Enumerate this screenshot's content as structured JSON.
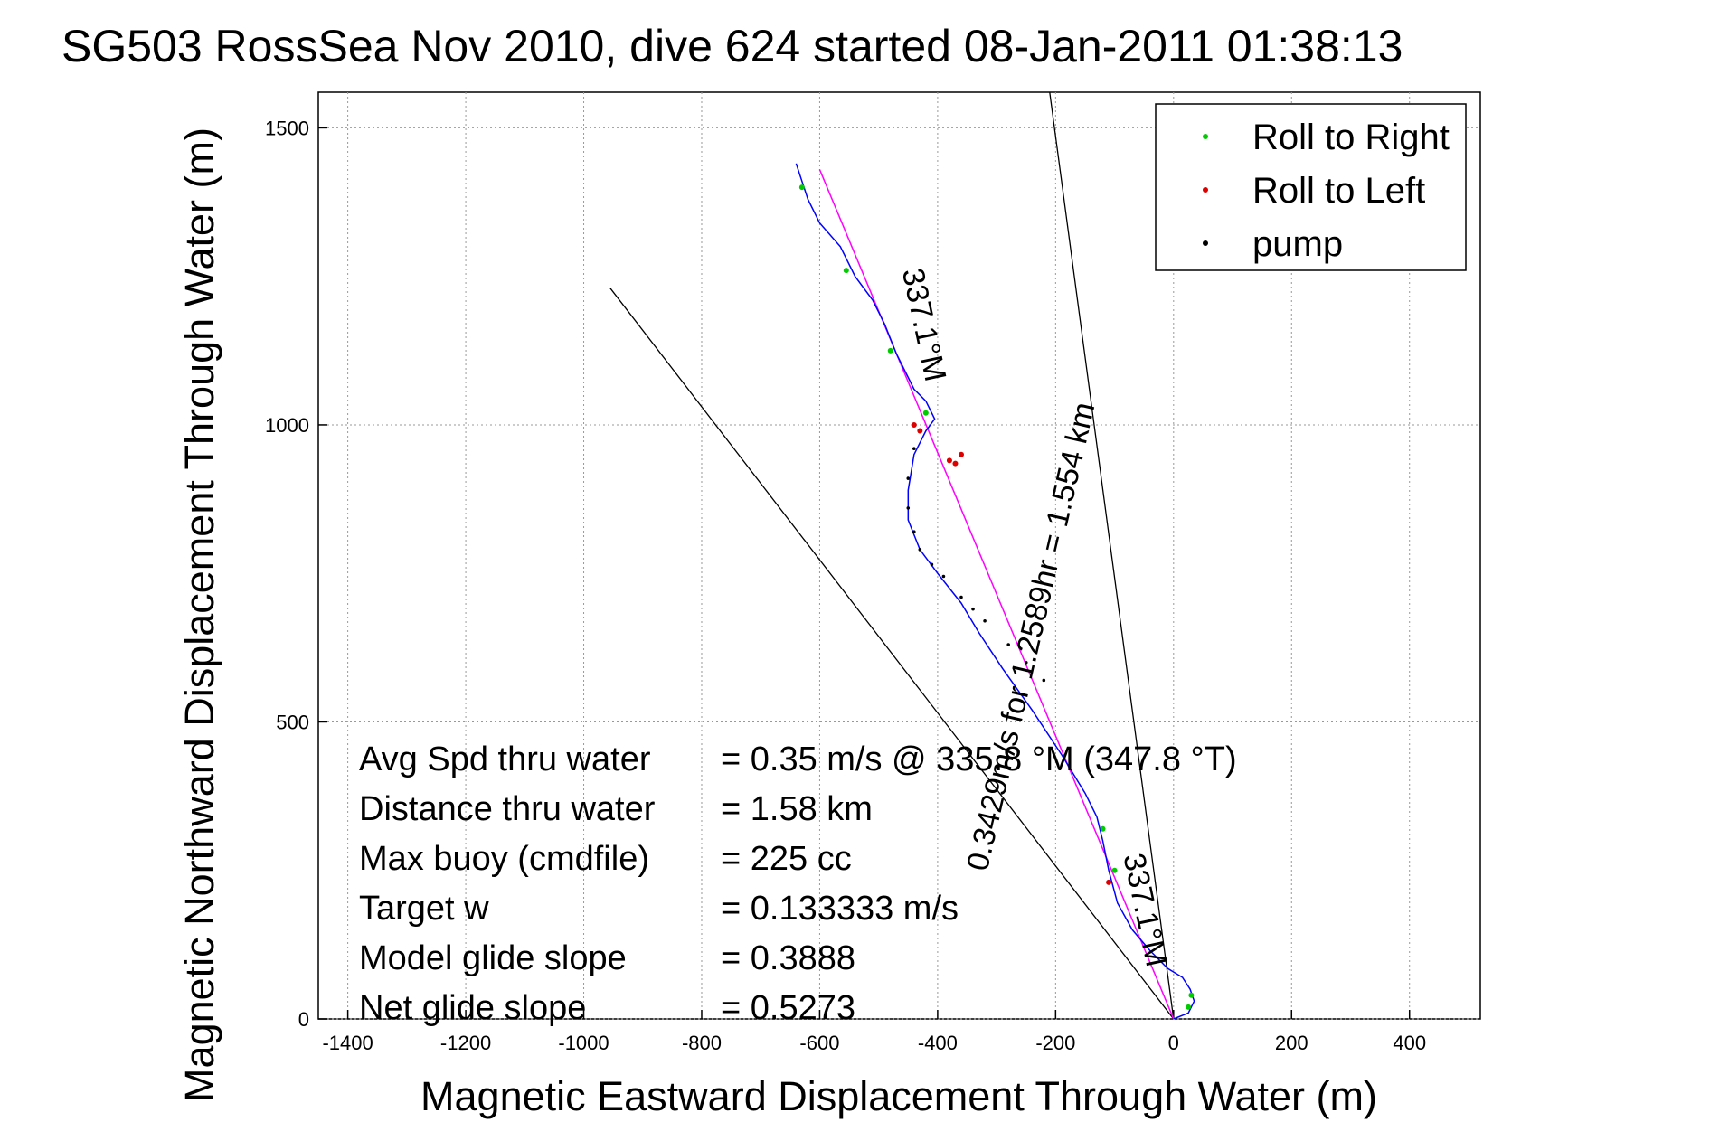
{
  "chart_data": {
    "type": "scatter",
    "title": "SG503 RossSea Nov 2010, dive 624 started 08-Jan-2011 01:38:13",
    "xlabel": "Magnetic Eastward Displacement Through Water (m)",
    "ylabel": "Magnetic Northward Displacement Through Water (m)",
    "xlim": [
      -1450,
      520
    ],
    "ylim": [
      0,
      1560
    ],
    "xticks": [
      -1400,
      -1200,
      -1000,
      -800,
      -600,
      -400,
      -200,
      0,
      200,
      400
    ],
    "xtick_labels": [
      "-1400",
      "-1200",
      "-1000",
      "-800",
      "-600",
      "-400",
      "-200",
      "0",
      "200",
      "400"
    ],
    "yticks": [
      0,
      500,
      1000,
      1500
    ],
    "ytick_labels": [
      "0",
      "500",
      "1000",
      "1500"
    ],
    "grid": true,
    "legend_position": "top-right",
    "legend": [
      {
        "name": "Roll to Right",
        "color": "#00cc00"
      },
      {
        "name": "Roll to Left",
        "color": "#dd0000"
      },
      {
        "name": "pump",
        "color": "#000000"
      }
    ],
    "track": {
      "color": "#0000ff",
      "points": [
        [
          0,
          0
        ],
        [
          25,
          10
        ],
        [
          35,
          30
        ],
        [
          28,
          50
        ],
        [
          15,
          70
        ],
        [
          -10,
          85
        ],
        [
          -40,
          115
        ],
        [
          -70,
          150
        ],
        [
          -95,
          195
        ],
        [
          -110,
          250
        ],
        [
          -120,
          300
        ],
        [
          -130,
          340
        ],
        [
          -150,
          380
        ],
        [
          -190,
          445
        ],
        [
          -240,
          520
        ],
        [
          -290,
          590
        ],
        [
          -330,
          650
        ],
        [
          -360,
          700
        ],
        [
          -400,
          750
        ],
        [
          -430,
          790
        ],
        [
          -450,
          840
        ],
        [
          -450,
          890
        ],
        [
          -440,
          950
        ],
        [
          -420,
          990
        ],
        [
          -405,
          1010
        ],
        [
          -420,
          1040
        ],
        [
          -440,
          1060
        ],
        [
          -470,
          1120
        ],
        [
          -490,
          1170
        ],
        [
          -510,
          1210
        ],
        [
          -540,
          1250
        ],
        [
          -565,
          1300
        ],
        [
          -600,
          1340
        ],
        [
          -620,
          1380
        ],
        [
          -640,
          1440
        ]
      ]
    },
    "roll_right_points": [
      [
        30,
        40
      ],
      [
        25,
        20
      ],
      [
        -630,
        1400
      ],
      [
        -555,
        1260
      ],
      [
        -480,
        1125
      ],
      [
        -420,
        1020
      ],
      [
        -100,
        250
      ],
      [
        -120,
        320
      ]
    ],
    "roll_left_points": [
      [
        -440,
        1000
      ],
      [
        -430,
        990
      ],
      [
        -380,
        940
      ],
      [
        -370,
        935
      ],
      [
        -360,
        950
      ],
      [
        -110,
        230
      ]
    ],
    "pump_points": [
      [
        -440,
        960
      ],
      [
        -450,
        910
      ],
      [
        -450,
        860
      ],
      [
        -440,
        820
      ],
      [
        -430,
        790
      ],
      [
        -410,
        765
      ],
      [
        -390,
        745
      ],
      [
        -360,
        710
      ],
      [
        -340,
        690
      ],
      [
        -320,
        670
      ],
      [
        -280,
        630
      ],
      [
        -250,
        600
      ],
      [
        -220,
        570
      ]
    ],
    "heading_line": {
      "color": "#ff00ff",
      "points": [
        [
          0,
          0
        ],
        [
          -600,
          1430
        ]
      ]
    },
    "reference_lines": [
      {
        "color": "#000000",
        "points": [
          [
            0,
            0
          ],
          [
            -955,
            1230
          ]
        ]
      },
      {
        "color": "#000000",
        "points": [
          [
            0,
            0
          ],
          [
            -210,
            1560
          ]
        ]
      }
    ],
    "annotations": [
      {
        "text": "337.1°M",
        "at": [
          -440,
          1165
        ],
        "rotate": 78
      },
      {
        "text": "0.3429m/s for 1.2589hr = 1.554 km",
        "at": [
          -225,
          640
        ],
        "rotate": -77
      },
      {
        "text": "337.1°M",
        "at": [
          -65,
          180
        ],
        "rotate": 78
      }
    ],
    "stats": [
      {
        "label": "Avg Spd thru water",
        "value": "=  0.35 m/s @ 335.8 °M (347.8 °T)"
      },
      {
        "label": "Distance thru water",
        "value": "=  1.58 km"
      },
      {
        "label": "Max buoy (cmdfile)",
        "value": "= 225 cc"
      },
      {
        "label": "Target w",
        "value": "= 0.133333 m/s"
      },
      {
        "label": "Model glide slope",
        "value": "= 0.3888"
      },
      {
        "label": "Net glide slope",
        "value": "= 0.5273"
      }
    ]
  }
}
